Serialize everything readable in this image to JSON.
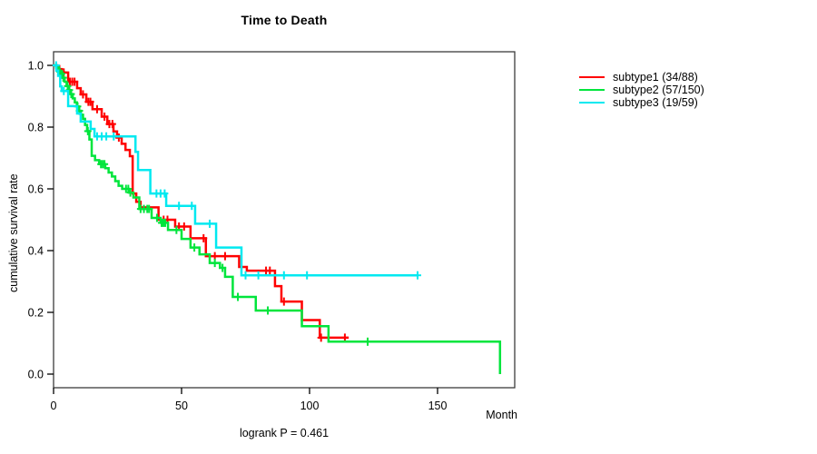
{
  "chart_data": {
    "type": "line",
    "variant": "kaplan-meier-step-curves",
    "title": "Time to Death",
    "xlabel": "Month",
    "ylabel": "cumulative survival rate",
    "annotation": "logrank P = 0.461",
    "xlim": [
      0,
      180
    ],
    "ylim": [
      0.0,
      1.0
    ],
    "x_ticks": [
      0,
      50,
      100,
      150
    ],
    "y_ticks": [
      0.0,
      0.2,
      0.4,
      0.6,
      0.8,
      1.0
    ],
    "grid": false,
    "legend_position": "right-outside",
    "axis_color": "#000000",
    "box_color": "#3c3c3c",
    "series": [
      {
        "name": "subtype1 (34/88)",
        "group": "subtype1",
        "events": 34,
        "n": 88,
        "color": "#ff0000",
        "steps": [
          [
            0,
            1.0
          ],
          [
            1.4,
            0.988
          ],
          [
            3.0,
            0.977
          ],
          [
            5.7,
            0.947
          ],
          [
            9.2,
            0.926
          ],
          [
            10.6,
            0.906
          ],
          [
            12.8,
            0.882
          ],
          [
            15.2,
            0.858
          ],
          [
            18.8,
            0.834
          ],
          [
            21.0,
            0.81
          ],
          [
            23.4,
            0.786
          ],
          [
            24.8,
            0.766
          ],
          [
            26.6,
            0.746
          ],
          [
            28.1,
            0.726
          ],
          [
            29.8,
            0.706
          ],
          [
            30.9,
            0.585
          ],
          [
            32.3,
            0.558
          ],
          [
            34.0,
            0.54
          ],
          [
            41.0,
            0.5
          ],
          [
            47.5,
            0.478
          ],
          [
            53.5,
            0.44
          ],
          [
            59.5,
            0.382
          ],
          [
            72.5,
            0.347
          ],
          [
            75.5,
            0.335
          ],
          [
            86.5,
            0.285
          ],
          [
            89.0,
            0.235
          ],
          [
            97.0,
            0.175
          ],
          [
            104.0,
            0.118
          ]
        ],
        "end_time": 115.3,
        "censor_times": [
          2.3,
          3.2,
          4.0,
          6.4,
          7.3,
          8.2,
          11.5,
          13.6,
          14.4,
          17.0,
          19.9,
          21.8,
          23.0,
          25.5,
          43.0,
          44.5,
          49.0,
          51.0,
          58.6,
          63.0,
          67.0,
          83.0,
          84.5,
          90.0,
          104.5,
          113.8
        ]
      },
      {
        "name": "subtype2 (57/150)",
        "group": "subtype2",
        "events": 57,
        "n": 150,
        "color": "#00e53c",
        "steps": [
          [
            0,
            1.0
          ],
          [
            1.0,
            0.993
          ],
          [
            2.0,
            0.98
          ],
          [
            2.7,
            0.973
          ],
          [
            3.5,
            0.96
          ],
          [
            4.3,
            0.947
          ],
          [
            5.1,
            0.933
          ],
          [
            5.9,
            0.92
          ],
          [
            6.7,
            0.907
          ],
          [
            7.5,
            0.893
          ],
          [
            8.3,
            0.88
          ],
          [
            9.1,
            0.867
          ],
          [
            9.9,
            0.853
          ],
          [
            10.7,
            0.84
          ],
          [
            11.5,
            0.827
          ],
          [
            12.3,
            0.807
          ],
          [
            13.1,
            0.787
          ],
          [
            14.0,
            0.76
          ],
          [
            14.9,
            0.707
          ],
          [
            16.2,
            0.693
          ],
          [
            17.8,
            0.68
          ],
          [
            20.2,
            0.667
          ],
          [
            21.5,
            0.653
          ],
          [
            22.8,
            0.64
          ],
          [
            24.1,
            0.625
          ],
          [
            25.4,
            0.61
          ],
          [
            26.8,
            0.6
          ],
          [
            29.5,
            0.588
          ],
          [
            31.2,
            0.572
          ],
          [
            33.5,
            0.535
          ],
          [
            38.3,
            0.506
          ],
          [
            41.8,
            0.49
          ],
          [
            44.7,
            0.467
          ],
          [
            50.0,
            0.438
          ],
          [
            53.5,
            0.41
          ],
          [
            57.0,
            0.388
          ],
          [
            61.0,
            0.36
          ],
          [
            65.0,
            0.344
          ],
          [
            67.0,
            0.315
          ],
          [
            70.0,
            0.25
          ],
          [
            79.0,
            0.206
          ],
          [
            97.0,
            0.155
          ],
          [
            107.4,
            0.105
          ],
          [
            174.4,
            0.0
          ]
        ],
        "end_time": 174.4,
        "censor_times": [
          2.4,
          3.1,
          3.8,
          5.5,
          6.2,
          6.9,
          9.4,
          10.1,
          13.4,
          18.5,
          19.2,
          19.9,
          28.3,
          29.2,
          30.0,
          34.0,
          35.3,
          36.6,
          37.3,
          40.4,
          42.2,
          42.9,
          43.6,
          48.0,
          55.0,
          63.0,
          66.0,
          72.0,
          83.7,
          122.7
        ]
      },
      {
        "name": "subtype3 (19/59)",
        "group": "subtype3",
        "events": 19,
        "n": 59,
        "color": "#00e9f0",
        "steps": [
          [
            0,
            1.0
          ],
          [
            1.1,
            0.983
          ],
          [
            1.8,
            0.966
          ],
          [
            2.6,
            0.932
          ],
          [
            3.2,
            0.917
          ],
          [
            5.7,
            0.868
          ],
          [
            9.2,
            0.844
          ],
          [
            10.6,
            0.818
          ],
          [
            14.5,
            0.794
          ],
          [
            16.0,
            0.77
          ],
          [
            32.0,
            0.72
          ],
          [
            33.0,
            0.661
          ],
          [
            37.8,
            0.585
          ],
          [
            44.0,
            0.545
          ],
          [
            55.3,
            0.487
          ],
          [
            63.5,
            0.41
          ],
          [
            73.4,
            0.32
          ]
        ],
        "end_time": 142.2,
        "censor_times": [
          1.0,
          4.0,
          17.0,
          18.8,
          20.6,
          23.5,
          40.2,
          41.8,
          43.4,
          49.0,
          54.0,
          61.0,
          75.0,
          80.0,
          90.0,
          99.0,
          142.2
        ]
      }
    ]
  }
}
